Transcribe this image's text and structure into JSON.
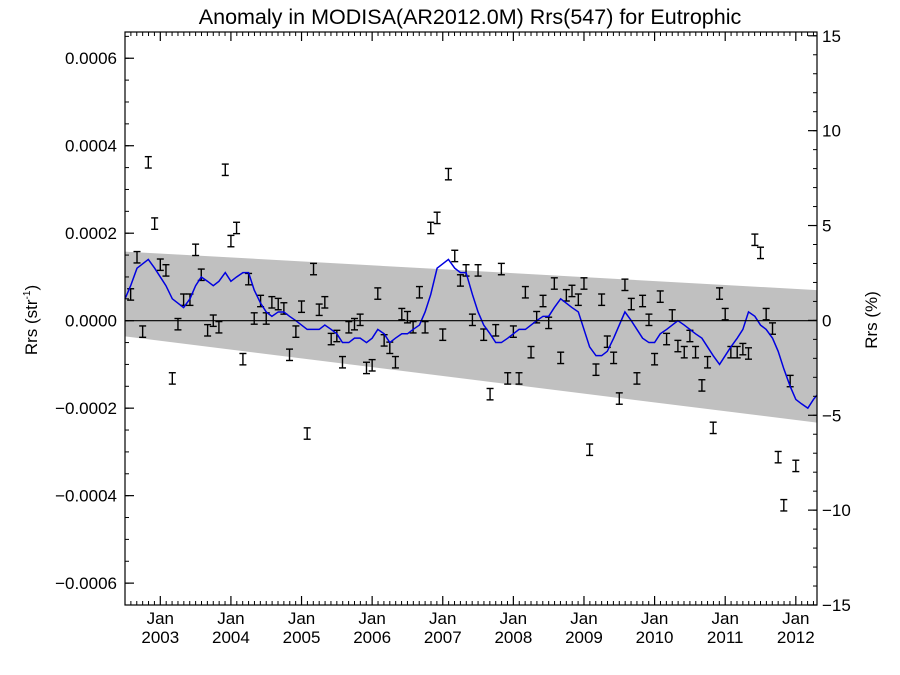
{
  "chart_data": {
    "type": "scatter",
    "title": "Anomaly in MODISA(AR2012.0M) Rrs(547) for Eutrophic",
    "ylabel_left": "Rrs (str",
    "ylabel_left_sup": "-1",
    "ylabel_left_close": ")",
    "ylabel_right": "Rrs (%)",
    "xlim": [
      2002.5,
      2012.3
    ],
    "ylim_left": [
      -0.00065,
      0.00066
    ],
    "ylim_right": [
      -15,
      15.2
    ],
    "left_ticks": [
      {
        "value": 0.0006,
        "label": "0.0006"
      },
      {
        "value": 0.0004,
        "label": "0.0004"
      },
      {
        "value": 0.0002,
        "label": "0.0002"
      },
      {
        "value": 0.0,
        "label": "0.0000"
      },
      {
        "value": -0.0002,
        "label": "−0.0002"
      },
      {
        "value": -0.0004,
        "label": "−0.0004"
      },
      {
        "value": -0.0006,
        "label": "−0.0006"
      }
    ],
    "right_ticks": [
      {
        "value": 15,
        "label": "15"
      },
      {
        "value": 10,
        "label": "10"
      },
      {
        "value": 5,
        "label": "5"
      },
      {
        "value": 0,
        "label": "0"
      },
      {
        "value": -5,
        "label": "−5"
      },
      {
        "value": -10,
        "label": "−10"
      },
      {
        "value": -15,
        "label": "−15"
      }
    ],
    "x_ticks": [
      {
        "value": 2003,
        "month": "Jan",
        "year": "2003"
      },
      {
        "value": 2004,
        "month": "Jan",
        "year": "2004"
      },
      {
        "value": 2005,
        "month": "Jan",
        "year": "2005"
      },
      {
        "value": 2006,
        "month": "Jan",
        "year": "2006"
      },
      {
        "value": 2007,
        "month": "Jan",
        "year": "2007"
      },
      {
        "value": 2008,
        "month": "Jan",
        "year": "2008"
      },
      {
        "value": 2009,
        "month": "Jan",
        "year": "2009"
      },
      {
        "value": 2010,
        "month": "Jan",
        "year": "2010"
      },
      {
        "value": 2011,
        "month": "Jan",
        "year": "2011"
      },
      {
        "value": 2012,
        "month": "Jan",
        "year": "2012"
      }
    ],
    "zero_line": 0,
    "band": {
      "start": {
        "x": 2002.5,
        "upper": 0.000158,
        "lower": -3.6e-05
      },
      "end": {
        "x": 2012.3,
        "upper": 7e-05,
        "lower": -0.000233
      }
    },
    "points": [
      {
        "x": 2002.58,
        "y": 6e-05
      },
      {
        "x": 2002.67,
        "y": 0.000145
      },
      {
        "x": 2002.75,
        "y": -2.5e-05
      },
      {
        "x": 2002.83,
        "y": 0.000362
      },
      {
        "x": 2002.92,
        "y": 0.000222
      },
      {
        "x": 2003.0,
        "y": 0.000128
      },
      {
        "x": 2003.08,
        "y": 0.000115
      },
      {
        "x": 2003.17,
        "y": -0.000132
      },
      {
        "x": 2003.25,
        "y": -8e-06
      },
      {
        "x": 2003.33,
        "y": 4.8e-05
      },
      {
        "x": 2003.42,
        "y": 4.8e-05
      },
      {
        "x": 2003.5,
        "y": 0.000162
      },
      {
        "x": 2003.58,
        "y": 0.000105
      },
      {
        "x": 2003.67,
        "y": -2.2e-05
      },
      {
        "x": 2003.75,
        "y": 0.0
      },
      {
        "x": 2003.83,
        "y": -1.5e-05
      },
      {
        "x": 2003.92,
        "y": 0.000345
      },
      {
        "x": 2004.0,
        "y": 0.000182
      },
      {
        "x": 2004.08,
        "y": 0.000212
      },
      {
        "x": 2004.17,
        "y": -8.8e-05
      },
      {
        "x": 2004.25,
        "y": 9.5e-05
      },
      {
        "x": 2004.33,
        "y": 5e-06
      },
      {
        "x": 2004.42,
        "y": 4.5e-05
      },
      {
        "x": 2004.5,
        "y": 5e-06
      },
      {
        "x": 2004.58,
        "y": 4.2e-05
      },
      {
        "x": 2004.67,
        "y": 3.8e-05
      },
      {
        "x": 2004.75,
        "y": 2.8e-05
      },
      {
        "x": 2004.83,
        "y": -7.8e-05
      },
      {
        "x": 2004.92,
        "y": -2.5e-05
      },
      {
        "x": 2005.0,
        "y": 3.2e-05
      },
      {
        "x": 2005.08,
        "y": -0.000258
      },
      {
        "x": 2005.17,
        "y": 0.000118
      },
      {
        "x": 2005.25,
        "y": 2.5e-05
      },
      {
        "x": 2005.33,
        "y": 4.2e-05
      },
      {
        "x": 2005.42,
        "y": -4.2e-05
      },
      {
        "x": 2005.5,
        "y": -3.5e-05
      },
      {
        "x": 2005.58,
        "y": -9.5e-05
      },
      {
        "x": 2005.67,
        "y": -1.5e-05
      },
      {
        "x": 2005.75,
        "y": -8e-06
      },
      {
        "x": 2005.83,
        "y": 2e-06
      },
      {
        "x": 2005.92,
        "y": -0.000108
      },
      {
        "x": 2006.0,
        "y": -0.000102
      },
      {
        "x": 2006.08,
        "y": 6.2e-05
      },
      {
        "x": 2006.17,
        "y": -4.5e-05
      },
      {
        "x": 2006.25,
        "y": -6.2e-05
      },
      {
        "x": 2006.33,
        "y": -9.5e-05
      },
      {
        "x": 2006.42,
        "y": 1.5e-05
      },
      {
        "x": 2006.5,
        "y": 8e-06
      },
      {
        "x": 2006.58,
        "y": -1.5e-05
      },
      {
        "x": 2006.67,
        "y": 6.5e-05
      },
      {
        "x": 2006.75,
        "y": -1.5e-05
      },
      {
        "x": 2006.83,
        "y": 0.000212
      },
      {
        "x": 2006.92,
        "y": 0.000235
      },
      {
        "x": 2007.0,
        "y": -3.2e-05
      },
      {
        "x": 2007.08,
        "y": 0.000335
      },
      {
        "x": 2007.17,
        "y": 0.000148
      },
      {
        "x": 2007.25,
        "y": 9.2e-05
      },
      {
        "x": 2007.33,
        "y": 0.000115
      },
      {
        "x": 2007.42,
        "y": 2e-06
      },
      {
        "x": 2007.5,
        "y": 0.000115
      },
      {
        "x": 2007.58,
        "y": -3.2e-05
      },
      {
        "x": 2007.67,
        "y": -0.000168
      },
      {
        "x": 2007.75,
        "y": -2.2e-05
      },
      {
        "x": 2007.83,
        "y": 0.000118
      },
      {
        "x": 2007.92,
        "y": -0.000132
      },
      {
        "x": 2008.0,
        "y": -2.5e-05
      },
      {
        "x": 2008.08,
        "y": -0.000132
      },
      {
        "x": 2008.17,
        "y": 6.5e-05
      },
      {
        "x": 2008.25,
        "y": -7.2e-05
      },
      {
        "x": 2008.33,
        "y": 8e-06
      },
      {
        "x": 2008.42,
        "y": 4.5e-05
      },
      {
        "x": 2008.5,
        "y": -5e-06
      },
      {
        "x": 2008.58,
        "y": 8.5e-05
      },
      {
        "x": 2008.67,
        "y": -8.5e-05
      },
      {
        "x": 2008.75,
        "y": 5.8e-05
      },
      {
        "x": 2008.83,
        "y": 6.8e-05
      },
      {
        "x": 2008.92,
        "y": 4.8e-05
      },
      {
        "x": 2009.0,
        "y": 8.5e-05
      },
      {
        "x": 2009.08,
        "y": -0.000295
      },
      {
        "x": 2009.17,
        "y": -0.000112
      },
      {
        "x": 2009.25,
        "y": 4.8e-05
      },
      {
        "x": 2009.33,
        "y": -4.8e-05
      },
      {
        "x": 2009.42,
        "y": -8.5e-05
      },
      {
        "x": 2009.5,
        "y": -0.000178
      },
      {
        "x": 2009.58,
        "y": 8.2e-05
      },
      {
        "x": 2009.67,
        "y": 3.8e-05
      },
      {
        "x": 2009.75,
        "y": -0.000132
      },
      {
        "x": 2009.83,
        "y": 4.5e-05
      },
      {
        "x": 2009.92,
        "y": 2e-06
      },
      {
        "x": 2010.0,
        "y": -8.8e-05
      },
      {
        "x": 2010.08,
        "y": 5.5e-05
      },
      {
        "x": 2010.17,
        "y": -4.2e-05
      },
      {
        "x": 2010.25,
        "y": 1.2e-05
      },
      {
        "x": 2010.33,
        "y": -5.8e-05
      },
      {
        "x": 2010.42,
        "y": -7.2e-05
      },
      {
        "x": 2010.5,
        "y": -3.5e-05
      },
      {
        "x": 2010.58,
        "y": -7.2e-05
      },
      {
        "x": 2010.67,
        "y": -0.000148
      },
      {
        "x": 2010.75,
        "y": -9.5e-05
      },
      {
        "x": 2010.83,
        "y": -0.000245
      },
      {
        "x": 2010.92,
        "y": 6.2e-05
      },
      {
        "x": 2011.0,
        "y": 1.5e-05
      },
      {
        "x": 2011.08,
        "y": -7.2e-05
      },
      {
        "x": 2011.17,
        "y": -7.2e-05
      },
      {
        "x": 2011.25,
        "y": -6.5e-05
      },
      {
        "x": 2011.33,
        "y": -7.5e-05
      },
      {
        "x": 2011.42,
        "y": 0.000185
      },
      {
        "x": 2011.5,
        "y": 0.000155
      },
      {
        "x": 2011.58,
        "y": 1.5e-05
      },
      {
        "x": 2011.67,
        "y": -1.8e-05
      },
      {
        "x": 2011.75,
        "y": -0.000312
      },
      {
        "x": 2011.83,
        "y": -0.000422
      },
      {
        "x": 2011.92,
        "y": -0.000138
      },
      {
        "x": 2012.0,
        "y": -0.000332
      }
    ],
    "error_bar_half_height": 1.3e-05,
    "series": [
      {
        "style": "line",
        "color": "#0000e0",
        "x": [
          2002.5,
          2002.58,
          2002.67,
          2002.75,
          2002.83,
          2002.92,
          2003.0,
          2003.08,
          2003.17,
          2003.25,
          2003.33,
          2003.42,
          2003.5,
          2003.58,
          2003.67,
          2003.75,
          2003.83,
          2003.92,
          2004.0,
          2004.08,
          2004.17,
          2004.25,
          2004.33,
          2004.42,
          2004.5,
          2004.58,
          2004.67,
          2004.75,
          2004.83,
          2004.92,
          2005.0,
          2005.08,
          2005.17,
          2005.25,
          2005.33,
          2005.42,
          2005.5,
          2005.58,
          2005.67,
          2005.75,
          2005.83,
          2005.92,
          2006.0,
          2006.08,
          2006.17,
          2006.25,
          2006.33,
          2006.42,
          2006.5,
          2006.58,
          2006.67,
          2006.75,
          2006.83,
          2006.92,
          2007.0,
          2007.08,
          2007.17,
          2007.25,
          2007.33,
          2007.42,
          2007.5,
          2007.58,
          2007.67,
          2007.75,
          2007.83,
          2007.92,
          2008.0,
          2008.08,
          2008.17,
          2008.25,
          2008.33,
          2008.42,
          2008.5,
          2008.58,
          2008.67,
          2008.75,
          2008.83,
          2008.92,
          2009.0,
          2009.08,
          2009.17,
          2009.25,
          2009.33,
          2009.42,
          2009.5,
          2009.58,
          2009.67,
          2009.75,
          2009.83,
          2009.92,
          2010.0,
          2010.08,
          2010.17,
          2010.25,
          2010.33,
          2010.42,
          2010.5,
          2010.58,
          2010.67,
          2010.75,
          2010.83,
          2010.92,
          2011.0,
          2011.08,
          2011.17,
          2011.25,
          2011.33,
          2011.42,
          2011.5,
          2011.58,
          2011.67,
          2011.75,
          2011.83,
          2011.92,
          2012.0,
          2012.08,
          2012.17,
          2012.25,
          2012.3
        ],
        "values": [
          5e-05,
          8e-05,
          0.00012,
          0.00013,
          0.00014,
          0.00012,
          0.0001,
          8e-05,
          5e-05,
          4e-05,
          3e-05,
          5e-05,
          8e-05,
          0.0001,
          9e-05,
          8e-05,
          9e-05,
          0.00011,
          9e-05,
          0.0001,
          0.00011,
          0.00011,
          7e-05,
          4e-05,
          2e-05,
          1e-05,
          2e-05,
          2e-05,
          1e-05,
          0.0,
          -1e-05,
          -2e-05,
          -2e-05,
          -2e-05,
          -1e-05,
          -2e-05,
          -3e-05,
          -5e-05,
          -5e-05,
          -4e-05,
          -4e-05,
          -5e-05,
          -4e-05,
          -2e-05,
          -3e-05,
          -5e-05,
          -4e-05,
          -3e-05,
          -3e-05,
          -2e-05,
          -1e-05,
          2e-05,
          6e-05,
          0.00012,
          0.00013,
          0.00014,
          0.00012,
          0.00011,
          0.00011,
          6e-05,
          2e-05,
          -1e-05,
          -3e-05,
          -5e-05,
          -5e-05,
          -4e-05,
          -3e-05,
          -2e-05,
          -2e-05,
          -1e-05,
          0.0,
          1e-05,
          1e-05,
          3e-05,
          5e-05,
          4e-05,
          3e-05,
          2e-05,
          -2e-05,
          -6e-05,
          -8e-05,
          -8e-05,
          -7e-05,
          -4e-05,
          -1e-05,
          2e-05,
          0.0,
          -2e-05,
          -4e-05,
          -5e-05,
          -5e-05,
          -3e-05,
          -2e-05,
          -1e-05,
          0.0,
          -1e-05,
          -2e-05,
          -3e-05,
          -4e-05,
          -6e-05,
          -8e-05,
          -0.0001,
          -8e-05,
          -6e-05,
          -4e-05,
          -2e-05,
          2e-05,
          1e-05,
          -1e-05,
          -2e-05,
          -4e-05,
          -7e-05,
          -0.00011,
          -0.00015,
          -0.00018,
          -0.00019,
          -0.0002,
          -0.00018,
          -0.00017
        ]
      }
    ]
  }
}
